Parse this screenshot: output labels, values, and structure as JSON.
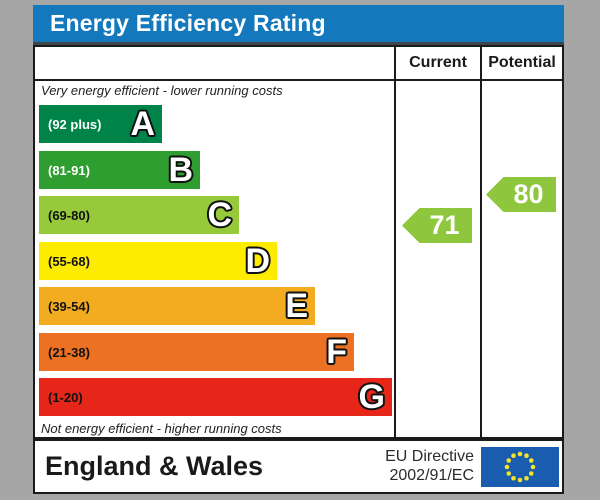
{
  "title": "Energy Efficiency Rating",
  "colors": {
    "page_background": "#a6a6a6",
    "title_bar": "#1478bd",
    "title_text": "#ffffff",
    "border": "#1a1a1a"
  },
  "header": {
    "current": "Current",
    "potential": "Potential"
  },
  "captions": {
    "top": "Very energy efficient - lower running costs",
    "bottom": "Not energy efficient - higher running costs"
  },
  "ratings": {
    "current": {
      "value": "71",
      "color": "#8ec73e"
    },
    "potential": {
      "value": "80",
      "color": "#8ec73e"
    }
  },
  "footer": {
    "region": "England & Wales",
    "directive_line1": "EU Directive",
    "directive_line2": "2002/91/EC",
    "eu_flag": {
      "blue": "#1a5cad",
      "star_yellow": "#f4e32a"
    }
  },
  "chart_data": {
    "type": "bar",
    "title": "Energy Efficiency Rating",
    "scale": [
      1,
      100
    ],
    "categories": [
      "A",
      "B",
      "C",
      "D",
      "E",
      "F",
      "G"
    ],
    "band_labels": [
      "(92 plus)",
      "(81-91)",
      "(69-80)",
      "(55-68)",
      "(39-54)",
      "(21-38)",
      "(1-20)"
    ],
    "band_ranges": [
      [
        92,
        100
      ],
      [
        81,
        91
      ],
      [
        69,
        80
      ],
      [
        55,
        68
      ],
      [
        39,
        54
      ],
      [
        21,
        38
      ],
      [
        1,
        20
      ]
    ],
    "band_colors": [
      "#008348",
      "#2f9e30",
      "#96ca3b",
      "#fdec00",
      "#f3ac20",
      "#ec7123",
      "#e52619"
    ],
    "band_label_colors": [
      "#ffffff",
      "#ffffff",
      "#111111",
      "#111111",
      "#111111",
      "#111111",
      "#111111"
    ],
    "series": [
      {
        "name": "Current",
        "value": 71,
        "band": "C"
      },
      {
        "name": "Potential",
        "value": 80,
        "band": "C"
      }
    ],
    "annotations": [
      "Very energy efficient - lower running costs",
      "Not energy efficient - higher running costs"
    ],
    "legend_position": "none",
    "grid": false
  }
}
